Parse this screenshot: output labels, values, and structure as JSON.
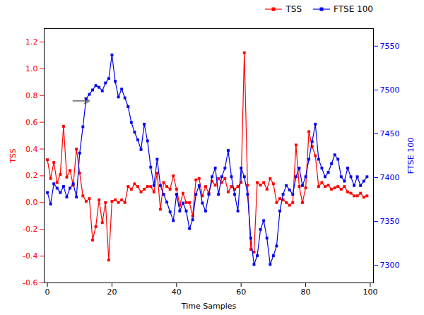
{
  "chart_data": {
    "type": "line",
    "xlabel": "Time Samples",
    "ylabel": "TSS",
    "y2label": "FTSE 100",
    "x": [
      0,
      1,
      2,
      3,
      4,
      5,
      6,
      7,
      8,
      9,
      10,
      11,
      12,
      13,
      14,
      15,
      16,
      17,
      18,
      19,
      20,
      21,
      22,
      23,
      24,
      25,
      26,
      27,
      28,
      29,
      30,
      31,
      32,
      33,
      34,
      35,
      36,
      37,
      38,
      39,
      40,
      41,
      42,
      43,
      44,
      45,
      46,
      47,
      48,
      49,
      50,
      51,
      52,
      53,
      54,
      55,
      56,
      57,
      58,
      59,
      60,
      61,
      62,
      63,
      64,
      65,
      66,
      67,
      68,
      69,
      70,
      71,
      72,
      73,
      74,
      75,
      76,
      77,
      78,
      79,
      80,
      81,
      82,
      83,
      84,
      85,
      86,
      87,
      88,
      89,
      90,
      91,
      92,
      93,
      94,
      95,
      96,
      97,
      98,
      99
    ],
    "series": [
      {
        "name": "TSS",
        "color": "#FF0000",
        "marker": "square",
        "values": [
          0.32,
          0.18,
          0.3,
          0.15,
          0.21,
          0.57,
          0.19,
          0.24,
          0.13,
          0.4,
          0.22,
          0.05,
          0.01,
          0.03,
          -0.28,
          -0.18,
          0.02,
          -0.15,
          0.0,
          -0.43,
          0.01,
          0.02,
          0.0,
          0.02,
          0.0,
          0.12,
          0.1,
          0.14,
          0.12,
          0.08,
          0.1,
          0.12,
          0.12,
          0.08,
          0.22,
          -0.05,
          0.15,
          0.12,
          0.1,
          0.2,
          0.1,
          -0.02,
          0.07,
          0.0,
          0.0,
          -0.1,
          0.17,
          0.18,
          0.05,
          0.12,
          0.07,
          0.16,
          0.13,
          0.18,
          0.15,
          0.18,
          0.08,
          0.12,
          0.1,
          0.12,
          0.15,
          1.12,
          0.13,
          -0.35,
          -0.37,
          0.15,
          0.13,
          0.15,
          0.1,
          0.18,
          0.14,
          0.0,
          0.03,
          0.02,
          0.0,
          -0.02,
          0.0,
          0.43,
          0.12,
          0.0,
          0.11,
          0.53,
          0.42,
          0.35,
          0.12,
          0.15,
          0.12,
          0.13,
          0.1,
          0.11,
          0.12,
          0.1,
          0.12,
          0.08,
          0.07,
          0.05,
          0.05,
          0.07,
          0.04,
          0.05
        ]
      },
      {
        "name": "FTSE 100",
        "color": "#0000EE",
        "marker": "square",
        "axis": "y2",
        "values": [
          7383,
          7370,
          7393,
          7388,
          7383,
          7390,
          7378,
          7388,
          7393,
          7378,
          7428,
          7458,
          7490,
          7495,
          7500,
          7505,
          7503,
          7499,
          7508,
          7513,
          7540,
          7510,
          7492,
          7501,
          7491,
          7481,
          7463,
          7452,
          7443,
          7432,
          7461,
          7442,
          7412,
          7391,
          7421,
          7391,
          7381,
          7372,
          7361,
          7351,
          7381,
          7362,
          7371,
          7362,
          7342,
          7352,
          7381,
          7391,
          7371,
          7362,
          7381,
          7401,
          7411,
          7381,
          7401,
          7411,
          7431,
          7401,
          7381,
          7362,
          7411,
          7401,
          7381,
          7331,
          7301,
          7311,
          7341,
          7351,
          7331,
          7301,
          7311,
          7322,
          7362,
          7381,
          7391,
          7386,
          7381,
          7401,
          7411,
          7391,
          7401,
          7421,
          7441,
          7461,
          7421,
          7411,
          7401,
          7406,
          7416,
          7426,
          7421,
          7401,
          7396,
          7411,
          7401,
          7391,
          7401,
          7391,
          7396,
          7401
        ]
      }
    ],
    "xlim": [
      -1,
      101
    ],
    "xticks": [
      0,
      20,
      40,
      60,
      80,
      100
    ],
    "ylim": [
      -0.6,
      1.3
    ],
    "yticks": [
      -0.6,
      -0.4,
      -0.2,
      {
        "value": 0.0,
        "label": "0.0"
      },
      0.2,
      0.4,
      0.6,
      0.8,
      {
        "value": 1.0,
        "label": "1.0"
      },
      1.2
    ],
    "y2lim": [
      7280,
      7570
    ],
    "y2ticks": [
      7300,
      7350,
      7400,
      7450,
      7500,
      7550
    ],
    "annotations": [
      {
        "x_tail": 8,
        "x_head": 13,
        "y": 0.76
      }
    ],
    "legend": "upper right",
    "grid": false
  }
}
